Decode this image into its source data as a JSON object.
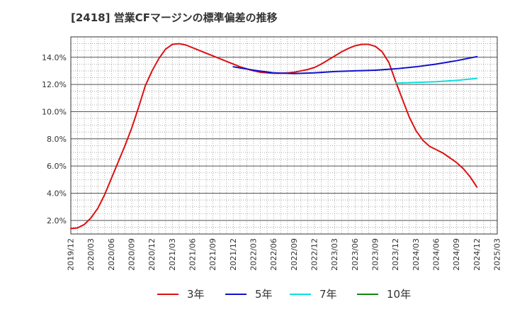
{
  "title": "[2418]  営業CFマージンの標準偏差の推移",
  "chart_data": {
    "type": "line",
    "title": "[2418]  営業CFマージンの標準偏差の推移",
    "xlabel": "",
    "ylabel": "",
    "x_ticks": [
      "2019/12",
      "2020/03",
      "2020/06",
      "2020/09",
      "2020/12",
      "2021/03",
      "2021/06",
      "2021/09",
      "2021/12",
      "2022/03",
      "2022/06",
      "2022/09",
      "2022/12",
      "2023/03",
      "2023/06",
      "2023/09",
      "2023/12",
      "2024/03",
      "2024/06",
      "2024/09",
      "2024/12",
      "2025/03"
    ],
    "y_ticks": [
      "2.0%",
      "4.0%",
      "6.0%",
      "8.0%",
      "10.0%",
      "12.0%",
      "14.0%"
    ],
    "y_tick_values": [
      2,
      4,
      6,
      8,
      10,
      12,
      14
    ],
    "ylim": [
      1.0,
      15.5
    ],
    "grid": true,
    "legend_position": "bottom",
    "series": [
      {
        "name": "3年",
        "color": "#dd1111",
        "points": [
          [
            "2019/12",
            1.4
          ],
          [
            "2020/01",
            1.45
          ],
          [
            "2020/02",
            1.7
          ],
          [
            "2020/03",
            2.2
          ],
          [
            "2020/04",
            2.9
          ],
          [
            "2020/05",
            3.9
          ],
          [
            "2020/06",
            5.1
          ],
          [
            "2020/07",
            6.3
          ],
          [
            "2020/08",
            7.5
          ],
          [
            "2020/09",
            8.8
          ],
          [
            "2020/10",
            10.3
          ],
          [
            "2020/11",
            11.9
          ],
          [
            "2020/12",
            13.0
          ],
          [
            "2021/01",
            13.9
          ],
          [
            "2021/02",
            14.6
          ],
          [
            "2021/03",
            14.95
          ],
          [
            "2021/04",
            15.0
          ],
          [
            "2021/05",
            14.9
          ],
          [
            "2021/06",
            14.7
          ],
          [
            "2021/07",
            14.5
          ],
          [
            "2021/08",
            14.3
          ],
          [
            "2021/09",
            14.1
          ],
          [
            "2021/10",
            13.9
          ],
          [
            "2021/11",
            13.7
          ],
          [
            "2021/12",
            13.5
          ],
          [
            "2022/01",
            13.3
          ],
          [
            "2022/02",
            13.15
          ],
          [
            "2022/03",
            13.0
          ],
          [
            "2022/04",
            12.9
          ],
          [
            "2022/05",
            12.85
          ],
          [
            "2022/06",
            12.82
          ],
          [
            "2022/07",
            12.82
          ],
          [
            "2022/08",
            12.85
          ],
          [
            "2022/09",
            12.9
          ],
          [
            "2022/10",
            13.0
          ],
          [
            "2022/11",
            13.1
          ],
          [
            "2022/12",
            13.25
          ],
          [
            "2023/01",
            13.5
          ],
          [
            "2023/02",
            13.8
          ],
          [
            "2023/03",
            14.1
          ],
          [
            "2023/04",
            14.4
          ],
          [
            "2023/05",
            14.65
          ],
          [
            "2023/06",
            14.85
          ],
          [
            "2023/07",
            14.95
          ],
          [
            "2023/08",
            14.95
          ],
          [
            "2023/09",
            14.8
          ],
          [
            "2023/10",
            14.4
          ],
          [
            "2023/11",
            13.6
          ],
          [
            "2023/12",
            12.2
          ],
          [
            "2024/01",
            10.9
          ],
          [
            "2024/02",
            9.6
          ],
          [
            "2024/03",
            8.6
          ],
          [
            "2024/04",
            7.9
          ],
          [
            "2024/05",
            7.45
          ],
          [
            "2024/06",
            7.2
          ],
          [
            "2024/07",
            6.95
          ],
          [
            "2024/08",
            6.6
          ],
          [
            "2024/09",
            6.25
          ],
          [
            "2024/10",
            5.8
          ],
          [
            "2024/11",
            5.2
          ],
          [
            "2024/12",
            4.45
          ]
        ]
      },
      {
        "name": "5年",
        "color": "#1111cc",
        "points": [
          [
            "2021/12",
            13.3
          ],
          [
            "2022/03",
            13.05
          ],
          [
            "2022/06",
            12.85
          ],
          [
            "2022/09",
            12.8
          ],
          [
            "2022/12",
            12.85
          ],
          [
            "2023/03",
            12.95
          ],
          [
            "2023/06",
            13.0
          ],
          [
            "2023/09",
            13.05
          ],
          [
            "2023/12",
            13.15
          ],
          [
            "2024/03",
            13.3
          ],
          [
            "2024/06",
            13.5
          ],
          [
            "2024/09",
            13.75
          ],
          [
            "2024/12",
            14.05
          ]
        ]
      },
      {
        "name": "7年",
        "color": "#11dddd",
        "points": [
          [
            "2023/12",
            12.1
          ],
          [
            "2024/03",
            12.15
          ],
          [
            "2024/06",
            12.2
          ],
          [
            "2024/09",
            12.3
          ],
          [
            "2024/12",
            12.45
          ]
        ]
      },
      {
        "name": "10年",
        "color": "#118811",
        "points": []
      }
    ]
  }
}
